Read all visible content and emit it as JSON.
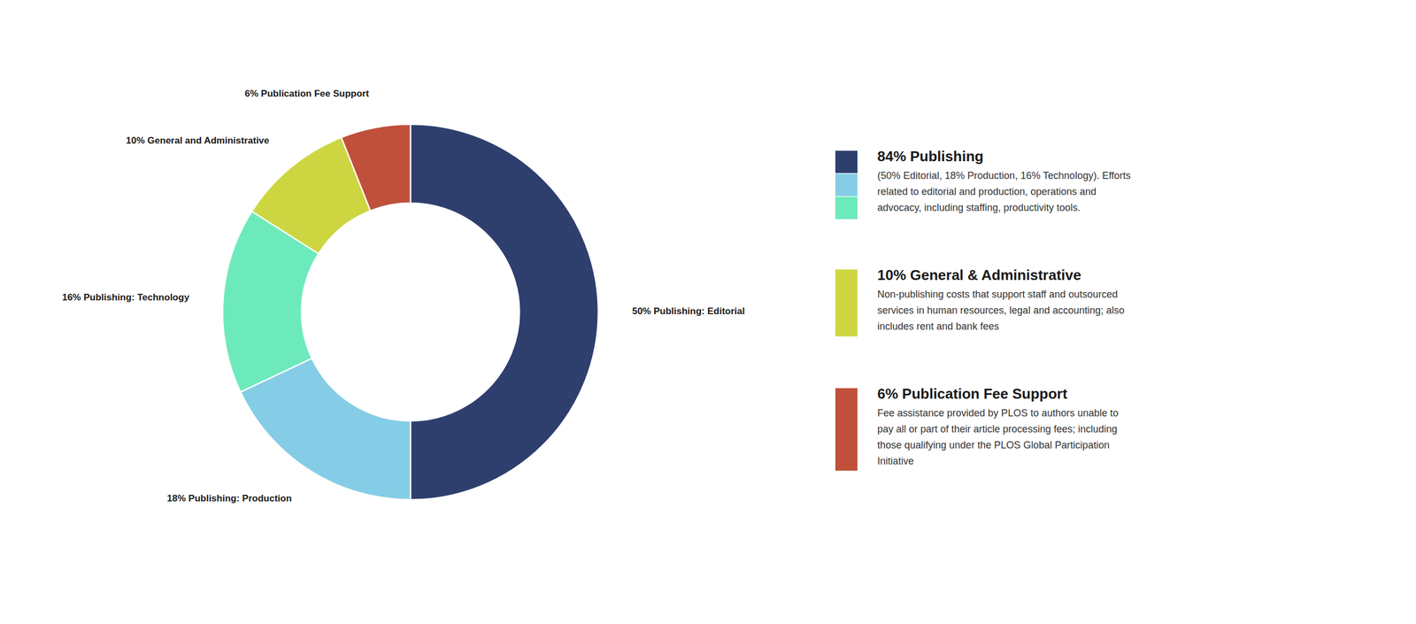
{
  "chart_data": {
    "type": "donut",
    "categories": [
      "50% Publishing: Editorial",
      "18% Publishing: Production",
      "16% Publishing: Technology",
      "10% General and Administrative",
      "6% Publication Fee Support"
    ],
    "values": [
      50,
      18,
      16,
      10,
      6
    ],
    "colors": [
      "#2e3f6e",
      "#85cde6",
      "#6deabb",
      "#cdd641",
      "#c0503a"
    ],
    "annotations": [
      {
        "colors": [
          "#2e3f6e",
          "#85cde6",
          "#6deabb"
        ],
        "title": "84% Publishing",
        "text": "(50% Editorial, 18% Production, 16% Technology). Efforts\nrelated to editorial and production, operations and\nadvocacy, including staffing, productivity tools."
      },
      {
        "colors": [
          "#cdd641"
        ],
        "title": "10% General & Administrative",
        "text": "Non-publishing costs that support staff and outsourced\nservices in human resources, legal and accounting; also\nincludes rent and bank fees"
      },
      {
        "colors": [
          "#c0503a"
        ],
        "title": "6% Publication Fee Support",
        "text": "Fee assistance provided by PLOS to authors unable to\npay all or part of their article processing fees; including\nthose qualifying under the PLOS Global Participation\nInitiative"
      }
    ]
  }
}
